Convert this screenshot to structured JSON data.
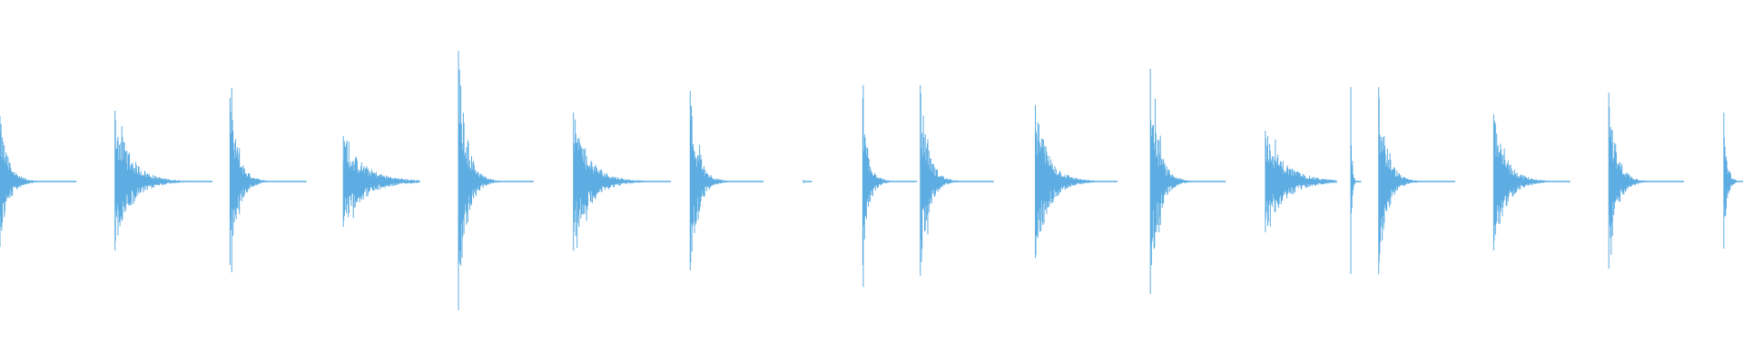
{
  "chart_data": {
    "type": "line",
    "subtype": "audio-waveform",
    "title": "",
    "xlabel": "",
    "ylabel": "",
    "axes_visible": false,
    "grid": false,
    "ylim": [
      -1,
      1
    ],
    "xlim": [
      0,
      1
    ],
    "color": "#5dade2",
    "background": "#ffffff",
    "bursts": [
      {
        "onset": 0.0,
        "end": 0.044,
        "amp_up": 0.36,
        "amp_down": 0.36,
        "decay": "fast"
      },
      {
        "onset": 0.066,
        "end": 0.122,
        "amp_up": 0.39,
        "amp_down": 0.38,
        "decay": "medium"
      },
      {
        "onset": 0.132,
        "end": 0.176,
        "amp_up": 0.46,
        "amp_down": 0.46,
        "decay": "fast"
      },
      {
        "onset": 0.197,
        "end": 0.241,
        "amp_up": 0.25,
        "amp_down": 0.25,
        "decay": "slow"
      },
      {
        "onset": 0.263,
        "end": 0.306,
        "amp_up": 0.72,
        "amp_down": 0.71,
        "decay": "fast"
      },
      {
        "onset": 0.329,
        "end": 0.385,
        "amp_up": 0.38,
        "amp_down": 0.38,
        "decay": "medium"
      },
      {
        "onset": 0.396,
        "end": 0.438,
        "amp_up": 0.5,
        "amp_down": 0.49,
        "decay": "fast"
      },
      {
        "onset": 0.461,
        "end": 0.466,
        "amp_up": 0.01,
        "amp_down": 0.01,
        "decay": "fast"
      },
      {
        "onset": 0.495,
        "end": 0.526,
        "amp_up": 0.46,
        "amp_down": 0.46,
        "decay": "fast"
      },
      {
        "onset": 0.528,
        "end": 0.57,
        "amp_up": 0.53,
        "amp_down": 0.52,
        "decay": "fast"
      },
      {
        "onset": 0.594,
        "end": 0.641,
        "amp_up": 0.42,
        "amp_down": 0.42,
        "decay": "medium"
      },
      {
        "onset": 0.66,
        "end": 0.703,
        "amp_up": 0.62,
        "amp_down": 0.62,
        "decay": "fast"
      },
      {
        "onset": 0.726,
        "end": 0.767,
        "amp_up": 0.28,
        "amp_down": 0.28,
        "decay": "slow"
      },
      {
        "onset": 0.775,
        "end": 0.781,
        "amp_up": 0.52,
        "amp_down": 0.51,
        "decay": "fast"
      },
      {
        "onset": 0.791,
        "end": 0.835,
        "amp_up": 0.52,
        "amp_down": 0.51,
        "decay": "fast"
      },
      {
        "onset": 0.857,
        "end": 0.901,
        "amp_up": 0.37,
        "amp_down": 0.38,
        "decay": "medium"
      },
      {
        "onset": 0.923,
        "end": 0.966,
        "amp_up": 0.49,
        "amp_down": 0.48,
        "decay": "fast"
      },
      {
        "onset": 0.989,
        "end": 1.0,
        "amp_up": 0.38,
        "amp_down": 0.37,
        "decay": "medium"
      }
    ]
  }
}
